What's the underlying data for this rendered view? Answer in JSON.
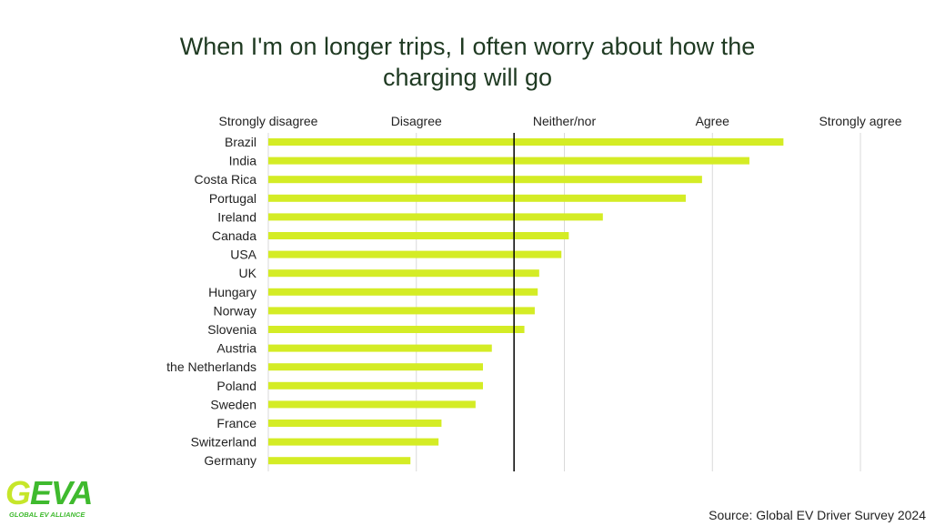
{
  "title_lines": [
    "When I'm on longer trips, I often worry about how the",
    "charging will go"
  ],
  "source": "Source: Global EV Driver Survey 2024",
  "logo": {
    "text": "GEVA",
    "subtitle": "GLOBAL EV ALLIANCE"
  },
  "colors": {
    "bar": "#d4ec25",
    "logo_green": "#3fba2e",
    "logo_lime": "#c6e62a",
    "grid": "#d9d9d9",
    "neutral_line": "#000000",
    "title": "#1f3a22"
  },
  "chart_data": {
    "type": "bar",
    "orientation": "horizontal",
    "title": "When I'm on longer trips, I often worry about how the charging will go",
    "xlim": [
      1,
      5
    ],
    "x_ticks": [
      {
        "value": 1,
        "label": "Strongly disagree"
      },
      {
        "value": 2,
        "label": "Disagree"
      },
      {
        "value": 3,
        "label": "Neither/nor"
      },
      {
        "value": 4,
        "label": "Agree"
      },
      {
        "value": 5,
        "label": "Strongly agree"
      }
    ],
    "x_tick_position": "top",
    "reference_line": 2.66,
    "grid": true,
    "categories": [
      "Brazil",
      "India",
      "Costa Rica",
      "Portugal",
      "Ireland",
      "Canada",
      "USA",
      "UK",
      "Hungary",
      "Norway",
      "Slovenia",
      "Austria",
      "the Netherlands",
      "Poland",
      "Sweden",
      "France",
      "Switzerland",
      "Germany"
    ],
    "values": [
      4.48,
      4.25,
      3.93,
      3.82,
      3.26,
      3.03,
      2.98,
      2.83,
      2.82,
      2.8,
      2.73,
      2.51,
      2.45,
      2.45,
      2.4,
      2.17,
      2.15,
      1.96
    ]
  }
}
